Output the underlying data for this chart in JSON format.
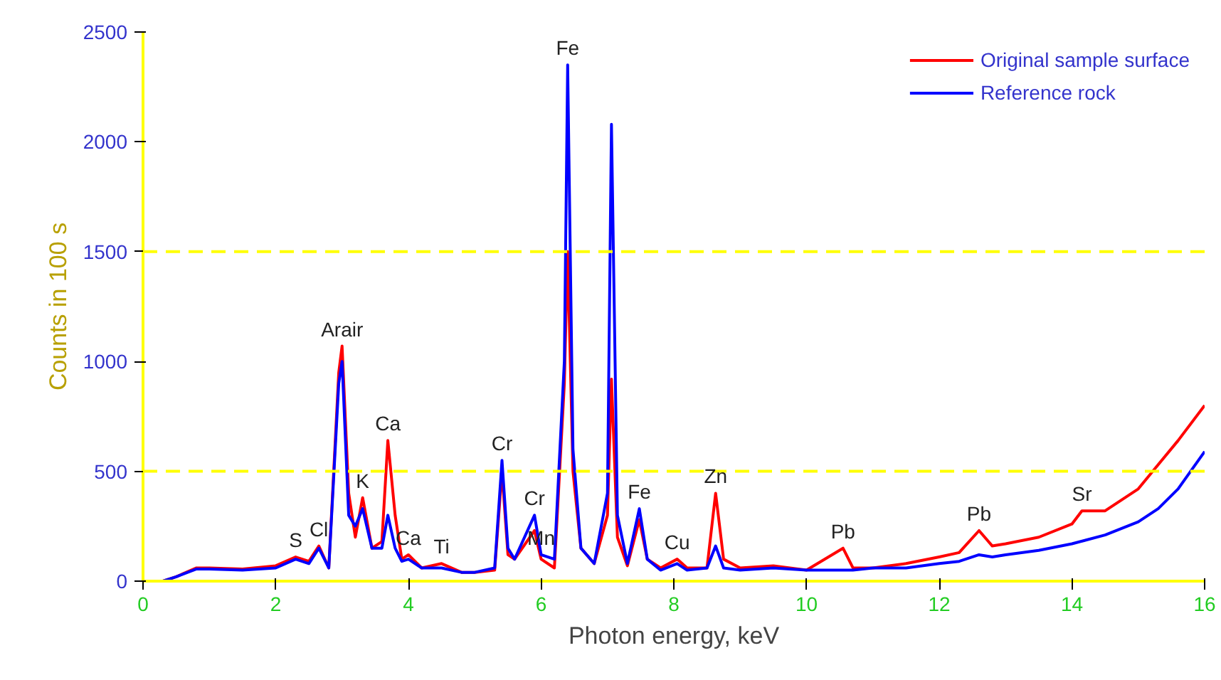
{
  "chart_data": {
    "type": "line",
    "xlabel": "Photon energy, keV",
    "ylabel": "Counts in 100 s",
    "xlim": [
      0,
      16
    ],
    "xticks": [
      0,
      2,
      4,
      6,
      8,
      10,
      12,
      14,
      16
    ],
    "ylim": [
      0,
      2500
    ],
    "yticks": [
      0,
      500,
      1000,
      1500,
      2000,
      2500
    ],
    "grid": false,
    "legend": "top right",
    "ref_lines": [
      {
        "axis": "y",
        "value": 500,
        "label": null,
        "color": "#ffff00",
        "line_style": "dashed"
      },
      {
        "axis": "y",
        "value": 1500,
        "label": null,
        "color": "#ffff00",
        "line_style": "dashed"
      }
    ],
    "series": [
      {
        "name": "Original sample surface",
        "color": "#ff0000",
        "x": [
          0.3,
          0.5,
          0.8,
          1.0,
          1.5,
          2.0,
          2.3,
          2.5,
          2.65,
          2.8,
          2.95,
          3.0,
          3.1,
          3.2,
          3.31,
          3.45,
          3.6,
          3.69,
          3.8,
          3.9,
          4.0,
          4.2,
          4.5,
          4.8,
          5.0,
          5.3,
          5.41,
          5.5,
          5.6,
          5.9,
          6.0,
          6.2,
          6.35,
          6.4,
          6.48,
          6.6,
          6.8,
          7.0,
          7.06,
          7.15,
          7.3,
          7.48,
          7.6,
          7.8,
          8.05,
          8.2,
          8.5,
          8.63,
          8.75,
          9.0,
          9.5,
          10.0,
          10.55,
          10.7,
          11.0,
          11.5,
          12.0,
          12.3,
          12.6,
          12.8,
          13.0,
          13.5,
          14.0,
          14.15,
          14.5,
          15.0,
          15.3,
          15.6,
          16.0
        ],
        "values": [
          0,
          20,
          60,
          60,
          55,
          70,
          110,
          90,
          160,
          60,
          950,
          1070,
          400,
          200,
          380,
          150,
          180,
          640,
          300,
          100,
          120,
          60,
          80,
          40,
          40,
          50,
          500,
          120,
          100,
          230,
          100,
          60,
          900,
          1500,
          500,
          150,
          80,
          300,
          920,
          200,
          70,
          280,
          100,
          60,
          100,
          60,
          60,
          400,
          100,
          60,
          70,
          50,
          150,
          60,
          60,
          80,
          110,
          130,
          230,
          160,
          170,
          200,
          260,
          320,
          320,
          420,
          530,
          640,
          800
        ]
      },
      {
        "name": "Reference rock",
        "color": "#0000ff",
        "x": [
          0.3,
          0.5,
          0.8,
          1.0,
          1.5,
          2.0,
          2.3,
          2.5,
          2.65,
          2.8,
          2.95,
          3.0,
          3.1,
          3.2,
          3.31,
          3.45,
          3.6,
          3.69,
          3.8,
          3.9,
          4.0,
          4.2,
          4.5,
          4.8,
          5.0,
          5.3,
          5.41,
          5.5,
          5.6,
          5.9,
          6.0,
          6.2,
          6.35,
          6.4,
          6.48,
          6.6,
          6.8,
          7.0,
          7.06,
          7.15,
          7.3,
          7.48,
          7.6,
          7.8,
          8.05,
          8.2,
          8.5,
          8.63,
          8.75,
          9.0,
          9.5,
          10.0,
          10.55,
          10.7,
          11.0,
          11.5,
          12.0,
          12.3,
          12.6,
          12.8,
          13.0,
          13.5,
          14.0,
          14.5,
          15.0,
          15.3,
          15.6,
          16.0
        ],
        "values": [
          0,
          20,
          55,
          55,
          50,
          60,
          100,
          80,
          150,
          60,
          900,
          1000,
          300,
          250,
          330,
          150,
          150,
          300,
          150,
          90,
          100,
          60,
          60,
          40,
          40,
          60,
          550,
          150,
          100,
          300,
          120,
          100,
          1000,
          2350,
          600,
          150,
          80,
          400,
          2080,
          300,
          80,
          330,
          100,
          50,
          80,
          50,
          60,
          160,
          60,
          50,
          60,
          50,
          50,
          50,
          60,
          60,
          80,
          90,
          120,
          110,
          120,
          140,
          170,
          210,
          270,
          330,
          420,
          590
        ]
      }
    ],
    "annotations": [
      {
        "text": "S",
        "x": 2.3,
        "y": 110
      },
      {
        "text": "Cl",
        "x": 2.65,
        "y": 160
      },
      {
        "text": "Arair",
        "x": 3.0,
        "y": 1070
      },
      {
        "text": "K",
        "x": 3.31,
        "y": 380
      },
      {
        "text": "Ca",
        "x": 3.69,
        "y": 640
      },
      {
        "text": "Ca",
        "x": 4.0,
        "y": 120
      },
      {
        "text": "Ti",
        "x": 4.5,
        "y": 80
      },
      {
        "text": "Cr",
        "x": 5.41,
        "y": 550
      },
      {
        "text": "Cr",
        "x": 5.9,
        "y": 300
      },
      {
        "text": "Mn",
        "x": 6.0,
        "y": 120
      },
      {
        "text": "Fe",
        "x": 6.4,
        "y": 2350
      },
      {
        "text": "Fe",
        "x": 7.48,
        "y": 330
      },
      {
        "text": "Cu",
        "x": 8.05,
        "y": 100
      },
      {
        "text": "Zn",
        "x": 8.63,
        "y": 400
      },
      {
        "text": "Pb",
        "x": 10.55,
        "y": 150
      },
      {
        "text": "Pb",
        "x": 12.6,
        "y": 230
      },
      {
        "text": "Sr",
        "x": 14.15,
        "y": 320
      }
    ]
  }
}
